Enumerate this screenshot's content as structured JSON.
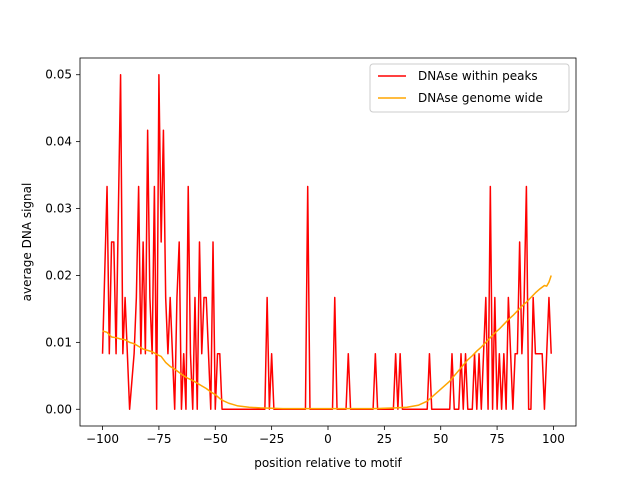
{
  "chart_data": {
    "type": "line",
    "xlabel": "position relative to motif",
    "ylabel": "average DNA signal",
    "xlim": [
      -110,
      110
    ],
    "ylim": [
      -0.0025,
      0.0525
    ],
    "xticks": [
      -100,
      -75,
      -50,
      -25,
      0,
      25,
      50,
      75,
      100
    ],
    "xtick_labels": [
      "−100",
      "−75",
      "−50",
      "−25",
      "0",
      "25",
      "50",
      "75",
      "100"
    ],
    "yticks": [
      0.0,
      0.01,
      0.02,
      0.03,
      0.04,
      0.05
    ],
    "ytick_labels": [
      "0.00",
      "0.01",
      "0.02",
      "0.03",
      "0.04",
      "0.05"
    ],
    "legend_position": "top-right",
    "grid": false,
    "series": [
      {
        "name": "DNAse within peaks",
        "color": "#ff0000",
        "points": [
          [
            -100,
            0.0083
          ],
          [
            -98,
            0.0333
          ],
          [
            -97,
            0.0083
          ],
          [
            -96,
            0.025
          ],
          [
            -95,
            0.025
          ],
          [
            -94,
            0.0083
          ],
          [
            -92,
            0.05
          ],
          [
            -91,
            0.0083
          ],
          [
            -90,
            0.0167
          ],
          [
            -88,
            0.0
          ],
          [
            -86,
            0.0083
          ],
          [
            -85,
            0.0167
          ],
          [
            -84,
            0.0333
          ],
          [
            -83,
            0.0083
          ],
          [
            -82,
            0.025
          ],
          [
            -81,
            0.0083
          ],
          [
            -80,
            0.0417
          ],
          [
            -79,
            0.0167
          ],
          [
            -78,
            0.0083
          ],
          [
            -77,
            0.0333
          ],
          [
            -76,
            0.0
          ],
          [
            -75,
            0.05
          ],
          [
            -74,
            0.025
          ],
          [
            -73,
            0.0417
          ],
          [
            -72,
            0.0167
          ],
          [
            -71,
            0.0083
          ],
          [
            -70,
            0.0167
          ],
          [
            -69,
            0.0083
          ],
          [
            -68,
            0.0
          ],
          [
            -67,
            0.0167
          ],
          [
            -66,
            0.025
          ],
          [
            -65,
            0.0
          ],
          [
            -64,
            0.0083
          ],
          [
            -63,
            0.0
          ],
          [
            -62,
            0.0333
          ],
          [
            -61,
            0.0083
          ],
          [
            -60,
            0.0
          ],
          [
            -59,
            0.0167
          ],
          [
            -58,
            0.0
          ],
          [
            -57,
            0.025
          ],
          [
            -56,
            0.0083
          ],
          [
            -55,
            0.0167
          ],
          [
            -54,
            0.0167
          ],
          [
            -53,
            0.0083
          ],
          [
            -52,
            0.0
          ],
          [
            -51,
            0.025
          ],
          [
            -50,
            0.0
          ],
          [
            -49,
            0.0083
          ],
          [
            -48,
            0.0083
          ],
          [
            -47,
            0.0
          ],
          [
            -30,
            0.0
          ],
          [
            -28,
            0.0
          ],
          [
            -27,
            0.0167
          ],
          [
            -26,
            0.0
          ],
          [
            -25,
            0.0083
          ],
          [
            -24,
            0.0
          ],
          [
            -10,
            0.0
          ],
          [
            -9,
            0.0333
          ],
          [
            -8,
            0.0
          ],
          [
            2,
            0.0
          ],
          [
            3,
            0.0167
          ],
          [
            4,
            0.0
          ],
          [
            8,
            0.0
          ],
          [
            9,
            0.0083
          ],
          [
            10,
            0.0
          ],
          [
            20,
            0.0
          ],
          [
            21,
            0.0083
          ],
          [
            22,
            0.0
          ],
          [
            29,
            0.0
          ],
          [
            30,
            0.0083
          ],
          [
            31,
            0.0
          ],
          [
            32,
            0.0083
          ],
          [
            33,
            0.0
          ],
          [
            44,
            0.0
          ],
          [
            45,
            0.0083
          ],
          [
            46,
            0.0
          ],
          [
            54,
            0.0
          ],
          [
            55,
            0.0083
          ],
          [
            56,
            0.0
          ],
          [
            58,
            0.0
          ],
          [
            59,
            0.0083
          ],
          [
            60,
            0.0
          ],
          [
            61,
            0.0083
          ],
          [
            62,
            0.0
          ],
          [
            64,
            0.0
          ],
          [
            65,
            0.0083
          ],
          [
            66,
            0.0
          ],
          [
            67,
            0.0083
          ],
          [
            68,
            0.0
          ],
          [
            69,
            0.0083
          ],
          [
            70,
            0.0167
          ],
          [
            71,
            0.0
          ],
          [
            72,
            0.0333
          ],
          [
            73,
            0.0
          ],
          [
            74,
            0.0167
          ],
          [
            75,
            0.0
          ],
          [
            76,
            0.0083
          ],
          [
            77,
            0.0
          ],
          [
            78,
            0.0083
          ],
          [
            79,
            0.0
          ],
          [
            80,
            0.0167
          ],
          [
            81,
            0.0083
          ],
          [
            82,
            0.0
          ],
          [
            83,
            0.0083
          ],
          [
            84,
            0.0083
          ],
          [
            85,
            0.025
          ],
          [
            86,
            0.0083
          ],
          [
            87,
            0.0167
          ],
          [
            88,
            0.0333
          ],
          [
            89,
            0.0
          ],
          [
            90,
            0.0
          ],
          [
            91,
            0.0167
          ],
          [
            92,
            0.0083
          ],
          [
            94,
            0.0083
          ],
          [
            95,
            0.0083
          ],
          [
            96,
            0.0
          ],
          [
            97,
            0.0083
          ],
          [
            98,
            0.0167
          ],
          [
            99,
            0.0083
          ]
        ]
      },
      {
        "name": "DNAse genome wide",
        "color": "#ffa500",
        "points": [
          [
            -100,
            0.0117
          ],
          [
            -98,
            0.0115
          ],
          [
            -96,
            0.0108
          ],
          [
            -94,
            0.0107
          ],
          [
            -92,
            0.0105
          ],
          [
            -90,
            0.0104
          ],
          [
            -88,
            0.01
          ],
          [
            -86,
            0.0098
          ],
          [
            -84,
            0.0094
          ],
          [
            -82,
            0.009
          ],
          [
            -80,
            0.0088
          ],
          [
            -78,
            0.0086
          ],
          [
            -76,
            0.0082
          ],
          [
            -74,
            0.0079
          ],
          [
            -72,
            0.007
          ],
          [
            -70,
            0.0064
          ],
          [
            -68,
            0.006
          ],
          [
            -66,
            0.0055
          ],
          [
            -64,
            0.005
          ],
          [
            -62,
            0.0046
          ],
          [
            -60,
            0.0043
          ],
          [
            -58,
            0.0039
          ],
          [
            -56,
            0.0035
          ],
          [
            -54,
            0.0031
          ],
          [
            -52,
            0.0026
          ],
          [
            -50,
            0.0022
          ],
          [
            -48,
            0.0016
          ],
          [
            -46,
            0.0012
          ],
          [
            -44,
            0.0009
          ],
          [
            -42,
            0.0007
          ],
          [
            -40,
            0.0005
          ],
          [
            -35,
            0.0003
          ],
          [
            -30,
            0.0002
          ],
          [
            -20,
            0.0001
          ],
          [
            -10,
            0.0001
          ],
          [
            0,
            0.0001
          ],
          [
            10,
            0.0001
          ],
          [
            20,
            0.0001
          ],
          [
            30,
            0.0002
          ],
          [
            35,
            0.0003
          ],
          [
            40,
            0.0006
          ],
          [
            44,
            0.0012
          ],
          [
            46,
            0.0018
          ],
          [
            48,
            0.0024
          ],
          [
            50,
            0.003
          ],
          [
            52,
            0.0036
          ],
          [
            54,
            0.0042
          ],
          [
            56,
            0.005
          ],
          [
            58,
            0.0058
          ],
          [
            60,
            0.0066
          ],
          [
            62,
            0.0074
          ],
          [
            64,
            0.008
          ],
          [
            66,
            0.0087
          ],
          [
            68,
            0.0093
          ],
          [
            70,
            0.01
          ],
          [
            72,
            0.0107
          ],
          [
            74,
            0.0114
          ],
          [
            76,
            0.012
          ],
          [
            78,
            0.0127
          ],
          [
            80,
            0.0134
          ],
          [
            82,
            0.014
          ],
          [
            84,
            0.0147
          ],
          [
            86,
            0.0154
          ],
          [
            88,
            0.016
          ],
          [
            90,
            0.0167
          ],
          [
            92,
            0.0174
          ],
          [
            94,
            0.018
          ],
          [
            96,
            0.0185
          ],
          [
            97,
            0.0184
          ],
          [
            98,
            0.019
          ],
          [
            99,
            0.02
          ]
        ]
      }
    ]
  }
}
